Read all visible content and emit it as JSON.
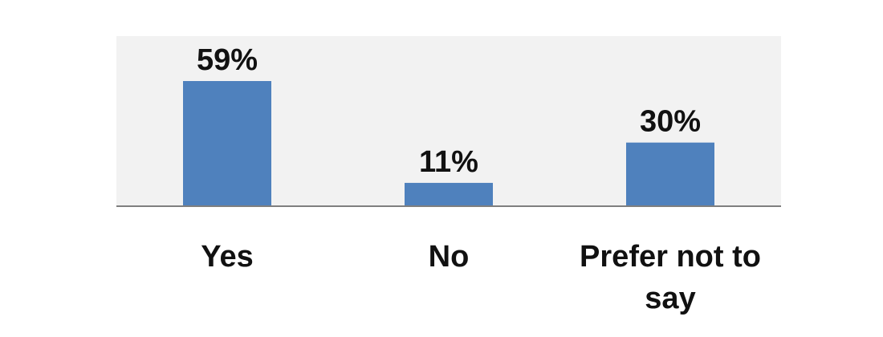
{
  "chart_data": {
    "type": "bar",
    "categories": [
      "Yes",
      "No",
      "Prefer not to say"
    ],
    "category_lines": [
      [
        "Yes"
      ],
      [
        "No"
      ],
      [
        "Prefer not to",
        "say"
      ]
    ],
    "values": [
      59,
      11,
      30
    ],
    "value_labels": [
      "59%",
      "11%",
      "30%"
    ],
    "unit": "%",
    "ylim": [
      0,
      59
    ],
    "grid": false,
    "legend": "none",
    "title": "",
    "xlabel": "",
    "ylabel": "",
    "colors": {
      "bar": "#4F81BD",
      "plot_background": "#F2F2F2",
      "axis": "#7F7F7F",
      "text": "#111111"
    }
  }
}
